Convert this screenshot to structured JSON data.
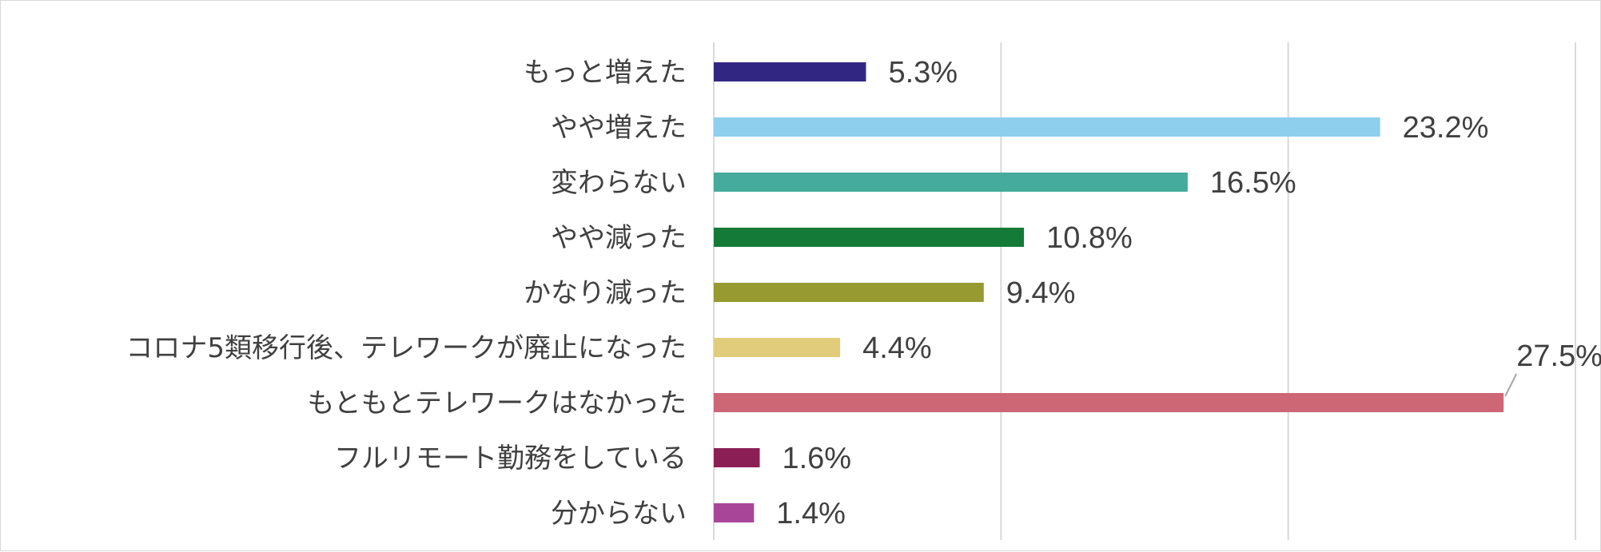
{
  "chart_data": {
    "type": "bar",
    "orientation": "horizontal",
    "categories": [
      "もっと増えた",
      "やや増えた",
      "変わらない",
      "やや減った",
      "かなり減った",
      "コロナ5類移行後、テレワークが廃止になった",
      "もともとテレワークはなかった",
      "フルリモート勤務をしている",
      "分からない"
    ],
    "values": [
      5.3,
      23.2,
      16.5,
      10.8,
      9.4,
      4.4,
      27.5,
      1.6,
      1.4
    ],
    "data_labels": [
      "5.3%",
      "23.2%",
      "16.5%",
      "10.8%",
      "9.4%",
      "4.4%",
      "27.5%",
      "1.6%",
      "1.4%"
    ],
    "colors": [
      "#312783",
      "#8ecfee",
      "#45ab9c",
      "#137a38",
      "#969a30",
      "#e0cc7a",
      "#cd6675",
      "#8b1e55",
      "#a84599"
    ],
    "xlim": [
      0,
      30
    ],
    "grid": true,
    "legend": "none",
    "title": "",
    "xlabel": "",
    "ylabel": ""
  }
}
